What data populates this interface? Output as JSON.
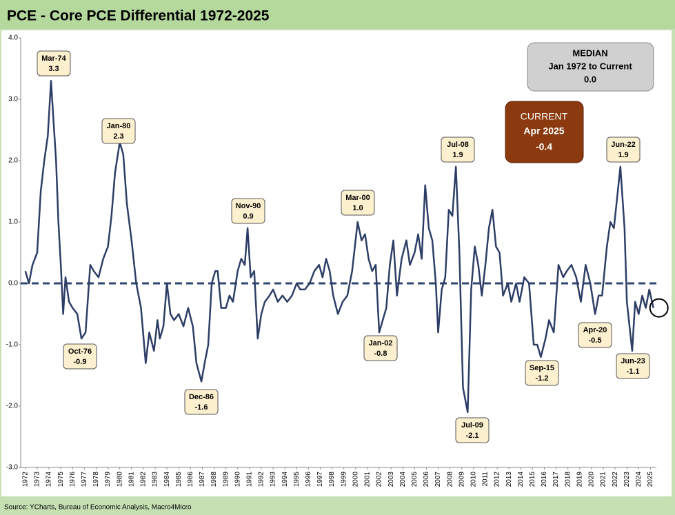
{
  "chart_data": {
    "type": "line",
    "title": "PCE - Core PCE Differential 1972-2025",
    "source": "Source: YCharts, Bureau of Economic Analysis, Macro4Micro",
    "color": "#2d3e66",
    "xlim": [
      1971.6,
      2025.5
    ],
    "xticks": [
      1972,
      1973,
      1974,
      1975,
      1976,
      1977,
      1978,
      1979,
      1980,
      1981,
      1982,
      1983,
      1984,
      1985,
      1986,
      1987,
      1988,
      1989,
      1990,
      1991,
      1992,
      1993,
      1994,
      1995,
      1996,
      1997,
      1998,
      1999,
      2000,
      2001,
      2002,
      2003,
      2004,
      2005,
      2006,
      2007,
      2008,
      2009,
      2010,
      2011,
      2012,
      2013,
      2014,
      2015,
      2016,
      2017,
      2018,
      2019,
      2020,
      2021,
      2022,
      2023,
      2024,
      2025
    ],
    "ylim": [
      -3,
      4
    ],
    "yticks": [
      {
        "value": 4,
        "label": "4.0"
      },
      {
        "value": 3,
        "label": "3.0"
      },
      {
        "value": 2,
        "label": "2.0"
      },
      {
        "value": 1,
        "label": "1.0"
      },
      {
        "value": 0,
        "label": "0.0"
      },
      {
        "value": -1,
        "label": "-1.0"
      },
      {
        "value": -2,
        "label": "-2.0"
      },
      {
        "value": -3,
        "label": "-3.0"
      }
    ],
    "x": [
      1972,
      1972.3,
      1972.6,
      1973,
      1973.3,
      1973.6,
      1973.9,
      1974.17,
      1974.4,
      1974.6,
      1974.8,
      1975,
      1975.2,
      1975.4,
      1975.7,
      1976,
      1976.4,
      1976.75,
      1977.1,
      1977.5,
      1977.8,
      1978.2,
      1978.6,
      1979,
      1979.3,
      1979.6,
      1980,
      1980.3,
      1980.6,
      1981,
      1981.4,
      1981.8,
      1982.2,
      1982.5,
      1982.9,
      1983.2,
      1983.4,
      1983.7,
      1984,
      1984.3,
      1984.6,
      1985,
      1985.4,
      1985.8,
      1986.2,
      1986.5,
      1986.92,
      1987.2,
      1987.5,
      1987.8,
      1988.1,
      1988.3,
      1988.6,
      1989,
      1989.3,
      1989.6,
      1990,
      1990.3,
      1990.6,
      1990.84,
      1991.1,
      1991.4,
      1991.7,
      1992,
      1992.3,
      1992.7,
      1993,
      1993.4,
      1993.8,
      1994.2,
      1994.6,
      1995,
      1995.3,
      1995.7,
      1996.1,
      1996.5,
      1996.9,
      1997.2,
      1997.5,
      1997.8,
      1998.1,
      1998.5,
      1998.9,
      1999.3,
      1999.7,
      2000.17,
      2000.5,
      2000.8,
      2001.1,
      2001.4,
      2001.7,
      2002,
      2002.3,
      2002.6,
      2002.9,
      2003.2,
      2003.5,
      2003.9,
      2004.3,
      2004.6,
      2005,
      2005.3,
      2005.6,
      2005.9,
      2006.2,
      2006.5,
      2006.8,
      2007,
      2007.3,
      2007.6,
      2007.9,
      2008.2,
      2008.5,
      2008.8,
      2009.1,
      2009.5,
      2009.8,
      2010.1,
      2010.4,
      2010.7,
      2011,
      2011.3,
      2011.6,
      2011.9,
      2012.2,
      2012.5,
      2012.9,
      2013.2,
      2013.6,
      2013.9,
      2014.3,
      2014.7,
      2015.1,
      2015.4,
      2015.7,
      2016.1,
      2016.4,
      2016.8,
      2017.2,
      2017.6,
      2017.9,
      2018.3,
      2018.7,
      2019.1,
      2019.5,
      2019.9,
      2020.3,
      2020.6,
      2020.9,
      2021.3,
      2021.6,
      2021.9,
      2022.45,
      2022.8,
      2023,
      2023.45,
      2023.7,
      2024,
      2024.3,
      2024.6,
      2024.9,
      2025.25
    ],
    "values": [
      0.2,
      0.0,
      0.3,
      0.5,
      1.5,
      2.0,
      2.4,
      3.3,
      2.6,
      2.0,
      1.0,
      0.3,
      -0.5,
      0.1,
      -0.3,
      -0.4,
      -0.5,
      -0.9,
      -0.8,
      0.3,
      0.2,
      0.1,
      0.4,
      0.6,
      1.1,
      1.8,
      2.3,
      2.1,
      1.3,
      0.7,
      0.0,
      -0.4,
      -1.3,
      -0.8,
      -1.1,
      -0.6,
      -0.9,
      -0.7,
      0.0,
      -0.5,
      -0.6,
      -0.5,
      -0.7,
      -0.4,
      -0.7,
      -1.3,
      -1.6,
      -1.3,
      -1.0,
      0.0,
      0.2,
      0.2,
      -0.4,
      -0.4,
      -0.2,
      -0.3,
      0.2,
      0.4,
      0.3,
      0.9,
      0.1,
      0.2,
      -0.9,
      -0.5,
      -0.3,
      -0.2,
      -0.1,
      -0.3,
      -0.2,
      -0.3,
      -0.2,
      0.0,
      -0.1,
      -0.1,
      0.0,
      0.2,
      0.3,
      0.1,
      0.4,
      0.2,
      -0.2,
      -0.5,
      -0.3,
      -0.2,
      0.2,
      1.0,
      0.7,
      0.8,
      0.4,
      0.2,
      0.3,
      -0.8,
      -0.6,
      -0.4,
      0.3,
      0.7,
      -0.2,
      0.4,
      0.7,
      0.3,
      0.5,
      0.8,
      0.4,
      1.6,
      0.9,
      0.7,
      0.0,
      -0.8,
      -0.1,
      0.1,
      1.2,
      1.1,
      1.9,
      0.5,
      -1.7,
      -2.1,
      -0.1,
      0.6,
      0.3,
      -0.2,
      0.3,
      0.9,
      1.2,
      0.6,
      0.5,
      -0.2,
      0.0,
      -0.3,
      0.0,
      -0.3,
      0.1,
      0.0,
      -1.0,
      -1.0,
      -1.2,
      -0.9,
      -0.6,
      -0.8,
      0.3,
      0.1,
      0.2,
      0.3,
      0.1,
      -0.3,
      0.3,
      0.0,
      -0.5,
      -0.2,
      -0.2,
      0.6,
      1.0,
      0.9,
      1.9,
      0.9,
      -0.3,
      -1.1,
      -0.3,
      -0.5,
      -0.2,
      -0.4,
      -0.1,
      -0.4
    ],
    "median": {
      "title": "MEDIAN",
      "period": "Jan 1972 to Current",
      "value": 0,
      "value_label": "0.0"
    },
    "current": {
      "title": "CURRENT",
      "date": "Apr 2025",
      "x": 2025.25,
      "value": -0.4
    },
    "annotations": [
      {
        "date": "Mar-74",
        "x": 1974.17,
        "value": 3.3
      },
      {
        "date": "Oct-76",
        "x": 1976.75,
        "value": -0.9
      },
      {
        "date": "Jan-80",
        "x": 1980,
        "value": 2.3
      },
      {
        "date": "Dec-86",
        "x": 1986.92,
        "value": -1.6
      },
      {
        "date": "Nov-90",
        "x": 1990.84,
        "value": 0.9
      },
      {
        "date": "Mar-00",
        "x": 2000.17,
        "value": 1,
        "value_label": "1.0"
      },
      {
        "date": "Jan-02",
        "x": 2002,
        "value": -0.8
      },
      {
        "date": "Jul-08",
        "x": 2008.5,
        "value": 1.9
      },
      {
        "date": "Jul-09",
        "x": 2009.5,
        "value": -2.1
      },
      {
        "date": "Sep-15",
        "x": 2015.7,
        "value": -1.2
      },
      {
        "date": "Apr-20",
        "x": 2020.3,
        "value": -0.5
      },
      {
        "date": "Jun-22",
        "x": 2022.45,
        "value": 1.9
      },
      {
        "date": "Jun-23",
        "x": 2023.45,
        "value": -1.1
      }
    ]
  }
}
